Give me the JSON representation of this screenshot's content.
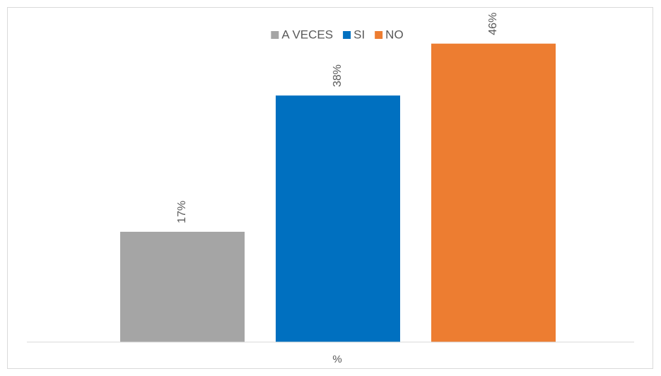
{
  "chart_data": {
    "type": "bar",
    "categories": [
      "%"
    ],
    "series": [
      {
        "name": "A VECES",
        "values": [
          17
        ],
        "label": "17%",
        "color": "#a5a5a5"
      },
      {
        "name": "SI",
        "values": [
          38
        ],
        "label": "38%",
        "color": "#0070c0"
      },
      {
        "name": "NO",
        "values": [
          46
        ],
        "label": "46%",
        "color": "#ed7d31"
      }
    ],
    "ylim": [
      0,
      50
    ],
    "grid": false,
    "legend": "top-center",
    "data_label_orientation": "vertical"
  }
}
